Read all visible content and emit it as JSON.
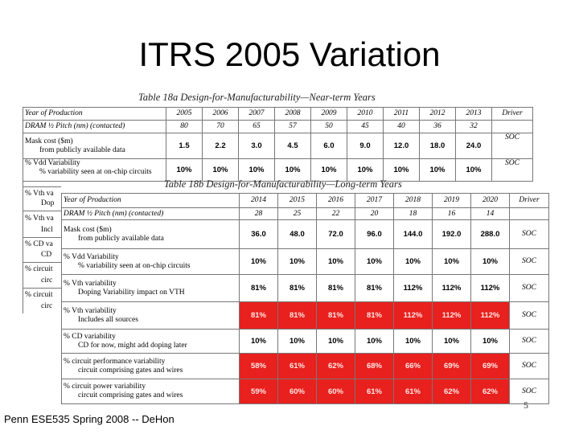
{
  "slide": {
    "title": "ITRS 2005 Variation",
    "footer": "Penn ESE535 Spring 2008 -- DeHon",
    "page_number": "5"
  },
  "table_a": {
    "caption": "Table 18a   Design-for-Manufacturability—Near-term Years",
    "year_label": "Year of Production",
    "years": [
      "2005",
      "2006",
      "2007",
      "2008",
      "2009",
      "2010",
      "2011",
      "2012",
      "2013"
    ],
    "driver_label": "Driver",
    "pitch_label": "DRAM ½ Pitch (nm) (contacted)",
    "pitch": [
      "80",
      "70",
      "65",
      "57",
      "50",
      "45",
      "40",
      "36",
      "32"
    ],
    "mask_label_1": "Mask cost ($m)",
    "mask_label_2": "from publicly available data",
    "mask": [
      "1.5",
      "2.2",
      "3.0",
      "4.5",
      "6.0",
      "9.0",
      "12.0",
      "18.0",
      "24.0"
    ],
    "mask_driver": "SOC",
    "vdd_label_1": "% Vdd Variability",
    "vdd_label_2": "% variability seen at on-chip circuits",
    "vdd": [
      "10%",
      "10%",
      "10%",
      "10%",
      "10%",
      "10%",
      "10%",
      "10%",
      "10%"
    ],
    "vdd_driver": "SOC"
  },
  "left_fragments": [
    "% Vth va",
    "Dop",
    "% Vth va",
    "Incl",
    "% CD va",
    "CD",
    "% circuit",
    "circ",
    "% circuit",
    "circ"
  ],
  "table_b": {
    "caption": "Table 18b   Design-for-Manufacturability—Long-term Years",
    "year_label": "Year of Production",
    "years": [
      "2014",
      "2015",
      "2016",
      "2017",
      "2018",
      "2019",
      "2020"
    ],
    "driver_label": "Driver",
    "pitch_label": "DRAM ½ Pitch (nm) (contacted)",
    "pitch": [
      "28",
      "25",
      "22",
      "20",
      "18",
      "16",
      "14"
    ],
    "rows": [
      {
        "label_1": "Mask cost ($m)",
        "label_2": "from publicly available data",
        "values": [
          "36.0",
          "48.0",
          "72.0",
          "96.0",
          "144.0",
          "192.0",
          "288.0"
        ],
        "driver": "SOC",
        "highlight": false
      },
      {
        "label_1": "% Vdd Variability",
        "label_2": "% variability seen at on-chip circuits",
        "values": [
          "10%",
          "10%",
          "10%",
          "10%",
          "10%",
          "10%",
          "10%"
        ],
        "driver": "SOC",
        "highlight": false
      },
      {
        "label_1": "% Vth variability",
        "label_2": "Doping Variability impact on VTH",
        "values": [
          "81%",
          "81%",
          "81%",
          "81%",
          "112%",
          "112%",
          "112%"
        ],
        "driver": "SOC",
        "highlight": false
      },
      {
        "label_1": "% Vth variability",
        "label_2": "Includes all sources",
        "values": [
          "81%",
          "81%",
          "81%",
          "81%",
          "112%",
          "112%",
          "112%"
        ],
        "driver": "SOC",
        "highlight": true
      },
      {
        "label_1": "% CD variability",
        "label_2": "CD for now, might add doping later",
        "values": [
          "10%",
          "10%",
          "10%",
          "10%",
          "10%",
          "10%",
          "10%"
        ],
        "driver": "SOC",
        "highlight": false
      },
      {
        "label_1": "% circuit performance variability",
        "label_2": "circuit comprising gates and wires",
        "values": [
          "58%",
          "61%",
          "62%",
          "68%",
          "66%",
          "69%",
          "69%"
        ],
        "driver": "SOC",
        "highlight": true
      },
      {
        "label_1": "% circuit power variability",
        "label_2": "circuit comprising gates and wires",
        "values": [
          "59%",
          "60%",
          "60%",
          "61%",
          "61%",
          "62%",
          "62%"
        ],
        "driver": "SOC",
        "highlight": true
      }
    ]
  },
  "colors": {
    "highlight": "#e8201e",
    "grid": "#777777"
  }
}
